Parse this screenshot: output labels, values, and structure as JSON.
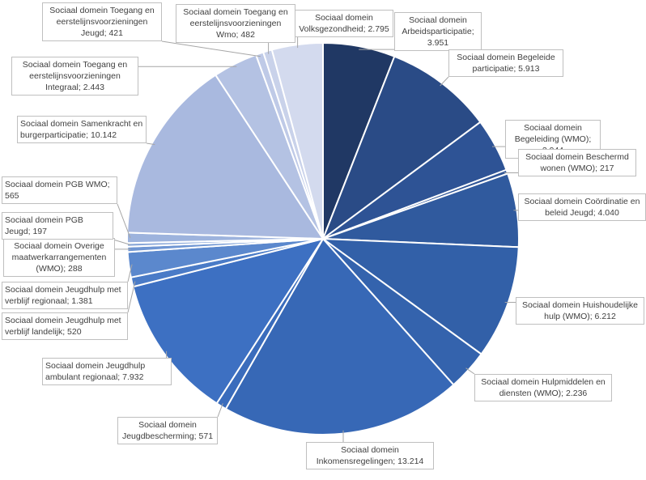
{
  "chart_data": {
    "type": "pie",
    "title": "",
    "slices": [
      {
        "label": "Sociaal domein Arbeidsparticipatie",
        "value": 3951,
        "display": "3.951",
        "color": "#203864"
      },
      {
        "label": "Sociaal domein Begeleide participatie",
        "value": 5913,
        "display": "5.913",
        "color": "#2a4b86"
      },
      {
        "label": "Sociaal domein Begeleiding (WMO)",
        "value": 2944,
        "display": "2.944",
        "color": "#2e5395"
      },
      {
        "label": "Sociaal domein Beschermd wonen (WMO)",
        "value": 217,
        "display": "217",
        "color": "#2f5597"
      },
      {
        "label": "Sociaal domein Coördinatie en beleid Jeugd",
        "value": 4040,
        "display": "4.040",
        "color": "#305a9e"
      },
      {
        "label": "Sociaal domein Huishoudelijke hulp (WMO)",
        "value": 6212,
        "display": "6.212",
        "color": "#3260a8"
      },
      {
        "label": "Sociaal domein Hulpmiddelen en diensten (WMO)",
        "value": 2236,
        "display": "2.236",
        "color": "#3463ad"
      },
      {
        "label": "Sociaal domein Inkomensregelingen",
        "value": 13214,
        "display": "13.214",
        "color": "#3768b6"
      },
      {
        "label": "Sociaal domein Jeugdbescherming",
        "value": 571,
        "display": "571",
        "color": "#3a6cbc"
      },
      {
        "label": "Sociaal domein Jeugdhulp ambulant regionaal",
        "value": 7932,
        "display": "7.932",
        "color": "#3d70c2"
      },
      {
        "label": "Sociaal domein Jeugdhulp met verblijf landelijk",
        "value": 520,
        "display": "520",
        "color": "#4a7bc7"
      },
      {
        "label": "Sociaal domein Jeugdhulp met verblijf regionaal",
        "value": 1381,
        "display": "1.381",
        "color": "#5b88cd"
      },
      {
        "label": "Sociaal domein Overige maatwerkarrangementen (WMO)",
        "value": 288,
        "display": "288",
        "color": "#6f96d3"
      },
      {
        "label": "Sociaal domein PGB Jeugd",
        "value": 197,
        "display": "197",
        "color": "#8aa8d9"
      },
      {
        "label": "Sociaal domein PGB WMO",
        "value": 565,
        "display": "565",
        "color": "#9db3dd"
      },
      {
        "label": "Sociaal domein Samenkracht en burgerparticipatie",
        "value": 10142,
        "display": "10.142",
        "color": "#a9b9df"
      },
      {
        "label": "Sociaal domein Toegang en eerstelijnsvoorzieningen Integraal",
        "value": 2443,
        "display": "2.443",
        "color": "#b4c2e3"
      },
      {
        "label": "Sociaal domein Toegang en eerstelijnsvoorzieningen Jeugd",
        "value": 421,
        "display": "421",
        "color": "#bfcae7"
      },
      {
        "label": "Sociaal domein Toegang en eerstelijnsvoorzieningen Wmo",
        "value": 482,
        "display": "482",
        "color": "#c9d2ea"
      },
      {
        "label": "Sociaal domein Volksgezondheid",
        "value": 2795,
        "display": "2.795",
        "color": "#d3daee"
      }
    ]
  }
}
